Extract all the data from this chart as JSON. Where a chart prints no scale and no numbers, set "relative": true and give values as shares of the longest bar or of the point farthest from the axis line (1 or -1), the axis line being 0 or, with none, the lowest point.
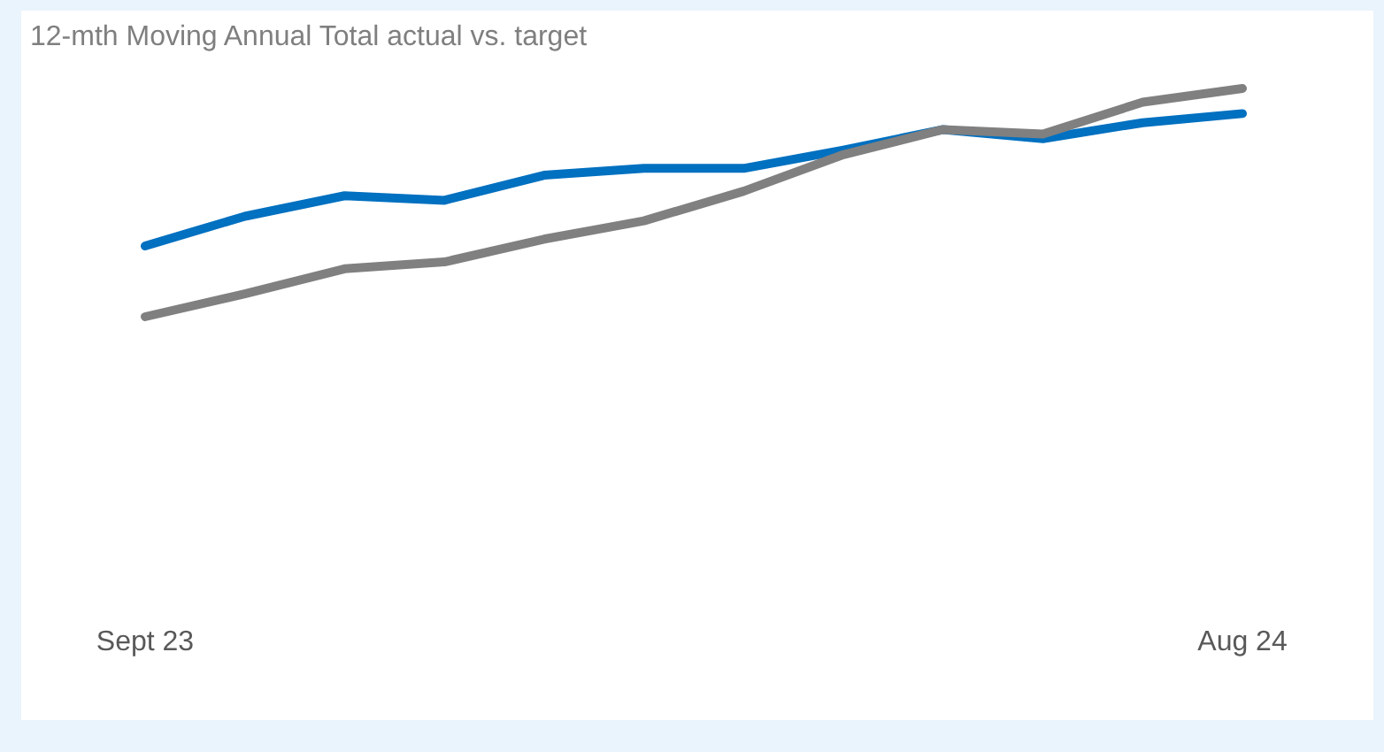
{
  "chart_data": {
    "type": "line",
    "title": "12-mth Moving Annual Total actual vs. target",
    "relative": true,
    "categories": [
      "Sept 23",
      null,
      null,
      null,
      null,
      null,
      null,
      null,
      null,
      null,
      null,
      "Aug 24"
    ],
    "series": [
      {
        "color": "#0070c0",
        "values": [
          0.31,
          0.44,
          0.53,
          0.51,
          0.62,
          0.65,
          0.65,
          0.73,
          0.82,
          0.78,
          0.85,
          0.89
        ]
      },
      {
        "color": "#808080",
        "values": [
          0,
          0.1,
          0.21,
          0.24,
          0.34,
          0.42,
          0.55,
          0.71,
          0.82,
          0.8,
          0.94,
          1
        ]
      }
    ],
    "grid": false,
    "marker": "none",
    "line_style": "solid"
  }
}
